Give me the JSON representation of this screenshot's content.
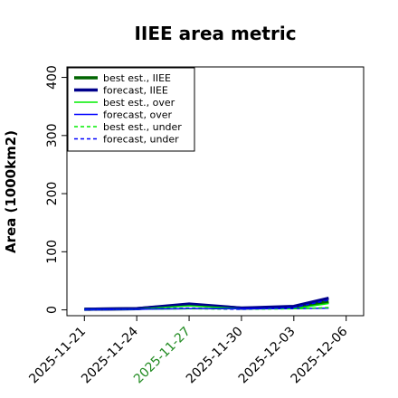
{
  "chart_data": {
    "type": "line",
    "title": "IIEE area metric",
    "xlabel": "",
    "ylabel": "Area (1000km2)",
    "ylim": [
      -10,
      418
    ],
    "xlim": [
      "2025-11-20",
      "2025-12-07"
    ],
    "y_ticks": [
      0,
      100,
      200,
      300,
      400
    ],
    "x_ticks": [
      "2025-11-21",
      "2025-11-24",
      "2025-11-27",
      "2025-11-30",
      "2025-12-03",
      "2025-12-06"
    ],
    "x_tick_colors": [
      "#000000",
      "#000000",
      "#228b22",
      "#000000",
      "#000000",
      "#000000"
    ],
    "grid": false,
    "legend_position": "top-left",
    "series": [
      {
        "name": "best est., IIEE",
        "color": "#006400",
        "style": "solid",
        "width": 3.5,
        "x": [
          "2025-11-21",
          "2025-11-24",
          "2025-11-27",
          "2025-11-30",
          "2025-12-03",
          "2025-12-05"
        ],
        "y": [
          1,
          2,
          9,
          3,
          4,
          14
        ]
      },
      {
        "name": "forecast, IIEE",
        "color": "#00008b",
        "style": "solid",
        "width": 3.5,
        "x": [
          "2025-11-21",
          "2025-11-24",
          "2025-11-27",
          "2025-11-30",
          "2025-12-03",
          "2025-12-05"
        ],
        "y": [
          1,
          2,
          10,
          3,
          6,
          20
        ]
      },
      {
        "name": "best est., over",
        "color": "#00ee00",
        "style": "solid",
        "width": 1.5,
        "x": [
          "2025-11-21",
          "2025-11-24",
          "2025-11-27",
          "2025-11-30",
          "2025-12-03",
          "2025-12-05"
        ],
        "y": [
          1,
          1,
          7,
          2,
          2,
          11
        ]
      },
      {
        "name": "forecast, over",
        "color": "#0000ff",
        "style": "solid",
        "width": 1.5,
        "x": [
          "2025-11-21",
          "2025-11-24",
          "2025-11-27",
          "2025-11-30",
          "2025-12-03",
          "2025-12-05"
        ],
        "y": [
          1,
          1,
          2,
          2,
          2,
          3
        ]
      },
      {
        "name": "best est., under",
        "color": "#00ee00",
        "style": "dashed",
        "width": 1.5,
        "x": [
          "2025-11-21",
          "2025-11-24",
          "2025-11-27",
          "2025-11-30",
          "2025-12-03",
          "2025-12-05"
        ],
        "y": [
          0,
          1,
          2,
          1,
          2,
          4
        ]
      },
      {
        "name": "forecast, under",
        "color": "#0000ff",
        "style": "dashed",
        "width": 1.5,
        "x": [
          "2025-11-21",
          "2025-11-24",
          "2025-11-27",
          "2025-11-30",
          "2025-12-03",
          "2025-12-05"
        ],
        "y": [
          0,
          1,
          3,
          1,
          4,
          17
        ]
      }
    ]
  }
}
